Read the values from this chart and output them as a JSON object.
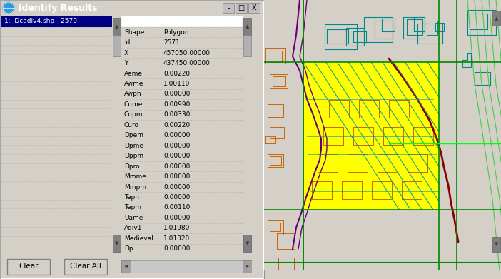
{
  "title_bar_text": "Identify Results",
  "title_bar_bg": "#2060a8",
  "title_bar_fg": "#ffffff",
  "dialog_bg": "#d4d0c8",
  "left_panel_header": "1:  Dcadiv4.shp - 2570",
  "left_panel_header_bg": "#000080",
  "left_panel_header_fg": "#ffffff",
  "table_rows": [
    [
      "Shape",
      "Polygon"
    ],
    [
      "Id",
      "2571"
    ],
    [
      "X",
      "457050.00000"
    ],
    [
      "Y",
      "437450.00000"
    ],
    [
      "Aeme",
      "0.00220"
    ],
    [
      "Awme",
      "1.00110"
    ],
    [
      "Awph",
      "0.00000"
    ],
    [
      "Cume",
      "0.00990"
    ],
    [
      "Cupm",
      "0.00330"
    ],
    [
      "Curo",
      "0.00220"
    ],
    [
      "Dpem",
      "0.00000"
    ],
    [
      "Dpme",
      "0.00000"
    ],
    [
      "Dppm",
      "0.00000"
    ],
    [
      "Dpro",
      "0.00000"
    ],
    [
      "Mmme",
      "0.00000"
    ],
    [
      "Mmpm",
      "0.00000"
    ],
    [
      "Teph",
      "0.00000"
    ],
    [
      "Tepm",
      "0.00110"
    ],
    [
      "Uame",
      "0.00000"
    ],
    [
      "Adiv1",
      "1.01980"
    ],
    [
      "Medieval",
      "1.01320"
    ],
    [
      "Dp",
      "0.00000"
    ]
  ],
  "button_clear": "Clear",
  "button_clear_all": "Clear All",
  "figsize": [
    7.02,
    3.91
  ],
  "dpi": 100
}
